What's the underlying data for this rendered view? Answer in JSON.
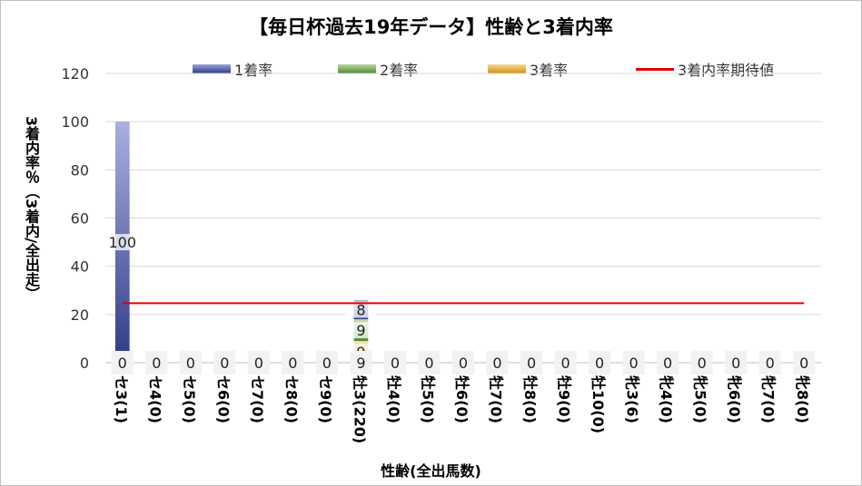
{
  "chart_data": {
    "type": "bar",
    "title": "【毎日杯過去19年データ】性齢と3着内率",
    "xlabel": "性齢(全出馬数)",
    "ylabel": "3着内率％（3着内/全出走）",
    "ylim": [
      0,
      120
    ],
    "yticks": [
      0,
      20,
      40,
      60,
      80,
      100,
      120
    ],
    "grid": true,
    "legend_position": "top",
    "categories": [
      "セ3(1)",
      "セ4(0)",
      "セ5(0)",
      "セ6(0)",
      "セ7(0)",
      "セ8(0)",
      "セ9(0)",
      "牡3(220)",
      "牡4(0)",
      "牡5(0)",
      "牡6(0)",
      "牡7(0)",
      "牡8(0)",
      "牡9(0)",
      "牡10(0)",
      "牝3(6)",
      "牝4(0)",
      "牝5(0)",
      "牝6(0)",
      "牝7(0)",
      "牝8(0)"
    ],
    "series": [
      {
        "name": "1着率",
        "color": "#2e3a87",
        "values": [
          100,
          0,
          0,
          0,
          0,
          0,
          0,
          8,
          0,
          0,
          0,
          0,
          0,
          0,
          0,
          0,
          0,
          0,
          0,
          0,
          0
        ]
      },
      {
        "name": "2着率",
        "color": "#70ad47",
        "values": [
          0,
          0,
          0,
          0,
          0,
          0,
          0,
          9,
          0,
          0,
          0,
          0,
          0,
          0,
          0,
          0,
          0,
          0,
          0,
          0,
          0
        ]
      },
      {
        "name": "3着率",
        "color": "#e8a317",
        "values": [
          0,
          0,
          0,
          0,
          0,
          0,
          0,
          9,
          0,
          0,
          0,
          0,
          0,
          0,
          0,
          0,
          0,
          0,
          0,
          0,
          0
        ]
      }
    ],
    "expected_line": {
      "name": "3着内率期待値",
      "color": "#e00000",
      "value": 24.7
    },
    "data_labels": [
      "0",
      "0",
      "0",
      "0",
      "0",
      "0",
      "0",
      "9",
      "0",
      "0",
      "0",
      "0",
      "0",
      "0",
      "0",
      "0",
      "0",
      "0",
      "0",
      "0",
      "0"
    ],
    "stack_labels": {
      "セ3(1)": [
        "100"
      ],
      "牡3(220)": [
        "9",
        "9",
        "8"
      ]
    }
  }
}
